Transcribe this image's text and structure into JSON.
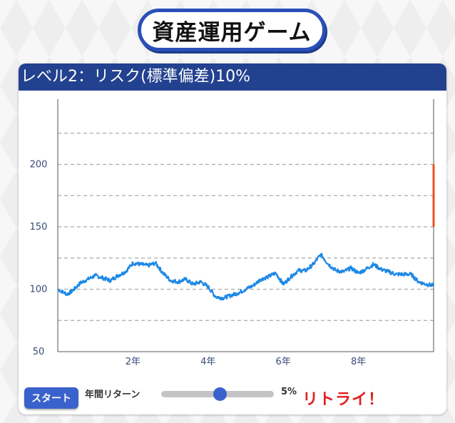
{
  "game": {
    "title": "資産運用ゲーム",
    "level_title": "レベル2：リスク(標準偏差)10%",
    "start_label": "スタート",
    "slider_label": "年間リターン",
    "return_value": "5%",
    "return_fraction": 0.52,
    "retry_label": "リトライ！"
  },
  "colors": {
    "header": "#22418f",
    "line": "#1e88e5",
    "target_bar": "#e8531e",
    "retry": "#e02020",
    "button": "#3a62cc"
  },
  "chart_data": {
    "type": "line",
    "y_ticks": [
      "50",
      "100",
      "150",
      "200"
    ],
    "x_ticks": [
      "2年",
      "4年",
      "6年",
      "8年"
    ],
    "xlim": [
      0,
      10
    ],
    "ylim": [
      50,
      250
    ],
    "grid": true,
    "series": [
      {
        "x": [
          0,
          0.25,
          0.4,
          0.6,
          0.8,
          1.0,
          1.2,
          1.4,
          1.6,
          1.8,
          2.0,
          2.2,
          2.4,
          2.6,
          2.8,
          3.0,
          3.2,
          3.4,
          3.6,
          3.8,
          4.0,
          4.2,
          4.4,
          4.6,
          4.8,
          5.0,
          5.2,
          5.4,
          5.6,
          5.8,
          6.0,
          6.2,
          6.4,
          6.6,
          6.8,
          7.0,
          7.2,
          7.4,
          7.6,
          7.8,
          8.0,
          8.2,
          8.4,
          8.6,
          8.8,
          9.0,
          9.2,
          9.4,
          9.6,
          9.8,
          10.0
        ],
        "y": [
          100,
          96,
          99,
          105,
          108,
          111,
          109,
          107,
          111,
          114,
          121,
          120,
          119,
          121,
          113,
          107,
          106,
          108,
          104,
          106,
          102,
          94,
          93,
          95,
          97,
          100,
          103,
          108,
          110,
          113,
          104,
          110,
          115,
          115,
          120,
          128,
          120,
          115,
          114,
          117,
          113,
          116,
          120,
          116,
          114,
          112,
          112,
          112,
          106,
          104,
          103
        ]
      }
    ],
    "target_range": [
      150,
      200
    ]
  }
}
